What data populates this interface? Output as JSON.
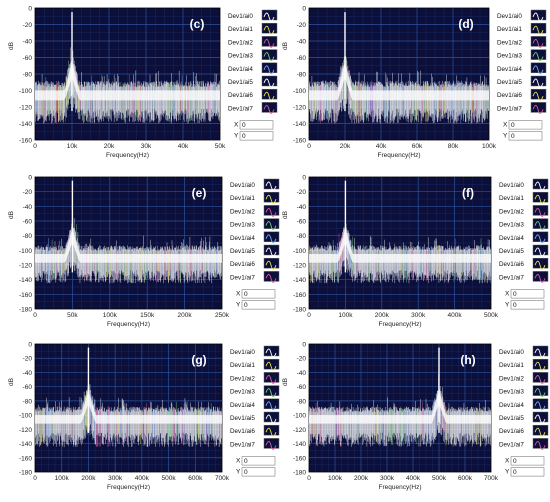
{
  "legend_items": [
    "Dev1/ai0",
    "Dev1/ai1",
    "Dev1/ai2",
    "Dev1/ai3",
    "Dev1/ai4",
    "Dev1/ai5",
    "Dev1/ai6",
    "Dev1/ai7"
  ],
  "cursor": {
    "x_label": "X",
    "y_label": "Y",
    "x_value": "0",
    "y_value": "0"
  },
  "colors": {
    "plot_bg": "#0b0f3a",
    "grid": "#2f5aa8",
    "trace": "#ffffff",
    "trace_noise": [
      "#ffffff",
      "#f2e84a",
      "#e45aa8",
      "#7fd27a",
      "#7fb0ff"
    ]
  },
  "chart_data": [
    {
      "panel_label": "(c)",
      "type": "line",
      "xlabel": "Frequency(Hz)",
      "ylabel": "dB",
      "xlim": [
        0,
        50000
      ],
      "ylim": [
        -160,
        0
      ],
      "x_ticks": [
        "0",
        "10k",
        "20k",
        "30k",
        "40k",
        "50k"
      ],
      "y_ticks": [
        "0",
        "-20",
        "-40",
        "-60",
        "-80",
        "-100",
        "-120",
        "-140",
        "-160"
      ],
      "peak_hz": 10000,
      "peak_db": -5,
      "noise_floor_db": -100,
      "noise_spread_db": 40,
      "series": [
        "Dev1/ai0",
        "Dev1/ai1",
        "Dev1/ai2",
        "Dev1/ai3",
        "Dev1/ai4",
        "Dev1/ai5",
        "Dev1/ai6",
        "Dev1/ai7"
      ]
    },
    {
      "panel_label": "(d)",
      "type": "line",
      "xlabel": "Frequency(Hz)",
      "ylabel": "dB",
      "xlim": [
        0,
        100000
      ],
      "ylim": [
        -160,
        0
      ],
      "x_ticks": [
        "0",
        "20k",
        "40k",
        "60k",
        "80k",
        "100k"
      ],
      "y_ticks": [
        "0",
        "-20",
        "-40",
        "-60",
        "-80",
        "-100",
        "-120",
        "-140",
        "-160"
      ],
      "peak_hz": 20000,
      "peak_db": -5,
      "noise_floor_db": -100,
      "noise_spread_db": 40,
      "series": [
        "Dev1/ai0",
        "Dev1/ai1",
        "Dev1/ai2",
        "Dev1/ai3",
        "Dev1/ai4",
        "Dev1/ai5",
        "Dev1/ai6",
        "Dev1/ai7"
      ]
    },
    {
      "panel_label": "(e)",
      "type": "line",
      "xlabel": "Frequency(Hz)",
      "ylabel": "dB",
      "xlim": [
        0,
        250000
      ],
      "ylim": [
        -180,
        0
      ],
      "x_ticks": [
        "0",
        "50k",
        "100k",
        "150k",
        "200k",
        "250k"
      ],
      "y_ticks": [
        "0",
        "-20",
        "-40",
        "-60",
        "-80",
        "-100",
        "-120",
        "-140",
        "-160",
        "-180"
      ],
      "peak_hz": 50000,
      "peak_db": -5,
      "noise_floor_db": -105,
      "noise_spread_db": 40,
      "series": [
        "Dev1/ai0",
        "Dev1/ai1",
        "Dev1/ai2",
        "Dev1/ai3",
        "Dev1/ai4",
        "Dev1/ai5",
        "Dev1/ai6",
        "Dev1/ai7"
      ]
    },
    {
      "panel_label": "(f)",
      "type": "line",
      "xlabel": "Frequency(Hz)",
      "ylabel": "dB",
      "xlim": [
        0,
        500000
      ],
      "ylim": [
        -180,
        0
      ],
      "x_ticks": [
        "0",
        "100k",
        "200k",
        "300k",
        "400k",
        "500k"
      ],
      "y_ticks": [
        "0",
        "-20",
        "-40",
        "-60",
        "-80",
        "-100",
        "-120",
        "-140",
        "-160",
        "-180"
      ],
      "peak_hz": 100000,
      "peak_db": -5,
      "noise_floor_db": -105,
      "noise_spread_db": 40,
      "series": [
        "Dev1/ai0",
        "Dev1/ai1",
        "Dev1/ai2",
        "Dev1/ai3",
        "Dev1/ai4",
        "Dev1/ai5",
        "Dev1/ai6",
        "Dev1/ai7"
      ]
    },
    {
      "panel_label": "(g)",
      "type": "line",
      "xlabel": "Frequency(Hz)",
      "ylabel": "dB",
      "xlim": [
        0,
        700000
      ],
      "ylim": [
        -180,
        0
      ],
      "x_ticks": [
        "0",
        "100k",
        "200k",
        "300k",
        "400k",
        "500k",
        "600k",
        "700k"
      ],
      "y_ticks": [
        "0",
        "-20",
        "-40",
        "-60",
        "-80",
        "-100",
        "-120",
        "-140",
        "-160",
        "-180"
      ],
      "peak_hz": 200000,
      "peak_db": -5,
      "noise_floor_db": -100,
      "noise_spread_db": 45,
      "series": [
        "Dev1/ai0",
        "Dev1/ai1",
        "Dev1/ai2",
        "Dev1/ai3",
        "Dev1/ai4",
        "Dev1/ai5",
        "Dev1/ai6",
        "Dev1/ai7"
      ]
    },
    {
      "panel_label": "(h)",
      "type": "line",
      "xlabel": "Frequency(Hz)",
      "ylabel": "dB",
      "xlim": [
        0,
        700000
      ],
      "ylim": [
        -180,
        0
      ],
      "x_ticks": [
        "0",
        "100k",
        "200k",
        "300k",
        "400k",
        "500k",
        "600k",
        "700k"
      ],
      "y_ticks": [
        "0",
        "-20",
        "-40",
        "-60",
        "-80",
        "-100",
        "-120",
        "-140",
        "-160",
        "-180"
      ],
      "peak_hz": 500000,
      "peak_db": -5,
      "noise_floor_db": -100,
      "noise_spread_db": 45,
      "series": [
        "Dev1/ai0",
        "Dev1/ai1",
        "Dev1/ai2",
        "Dev1/ai3",
        "Dev1/ai4",
        "Dev1/ai5",
        "Dev1/ai6",
        "Dev1/ai7"
      ]
    }
  ]
}
